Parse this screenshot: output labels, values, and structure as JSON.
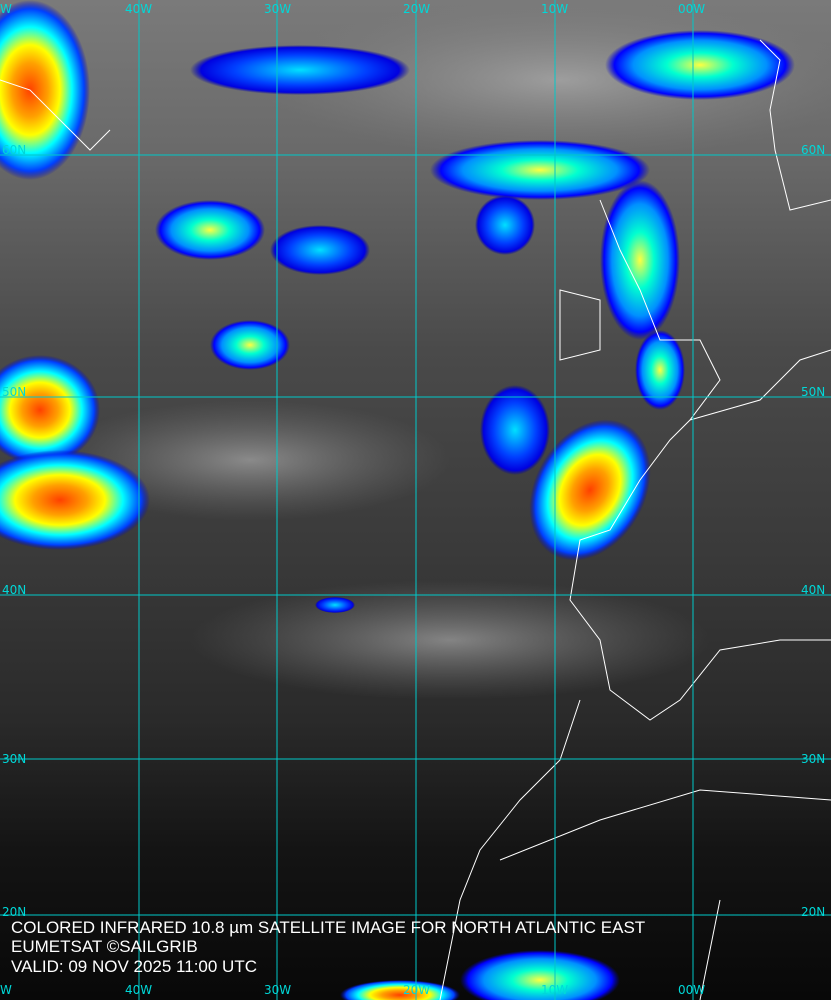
{
  "title_lines": [
    "COLORED INFRARED 10.8 µm SATELLITE IMAGE FOR NORTH ATLANTIC EAST",
    "EUMETSAT ©SAILGRIB",
    "VALID:  09 NOV 2025 11:00 UTC"
  ],
  "longitude_labels": [
    "40W",
    "30W",
    "20W",
    "10W",
    "00W"
  ],
  "longitude_edge_label": "W",
  "latitude_labels": [
    "60N",
    "50N",
    "40N",
    "30N",
    "20N"
  ],
  "colors": {
    "grid": "#00d8d8",
    "coast": "#ffffff",
    "cloud_cold": "#0000ff",
    "cloud_mid": "#00ffff",
    "cloud_high": "#ffff00",
    "cloud_top": "#ff3000"
  }
}
